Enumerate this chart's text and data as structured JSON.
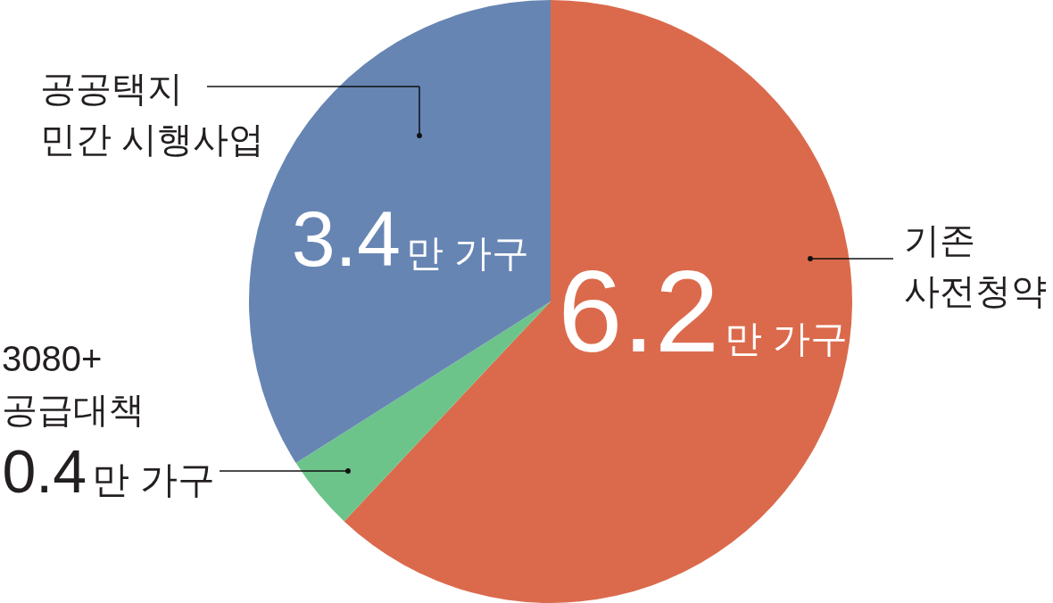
{
  "chart_data": {
    "type": "pie",
    "categories": [
      "기존 사전청약",
      "3080+ 공급대책",
      "공공택지 민간 시행사업"
    ],
    "values": [
      6.2,
      0.4,
      3.4
    ],
    "colors": [
      "#db6a4c",
      "#6dc48a",
      "#6685b3"
    ],
    "value_labels": [
      "6.2만 가구",
      "0.4만 가구",
      "3.4만 가구"
    ]
  }
}
